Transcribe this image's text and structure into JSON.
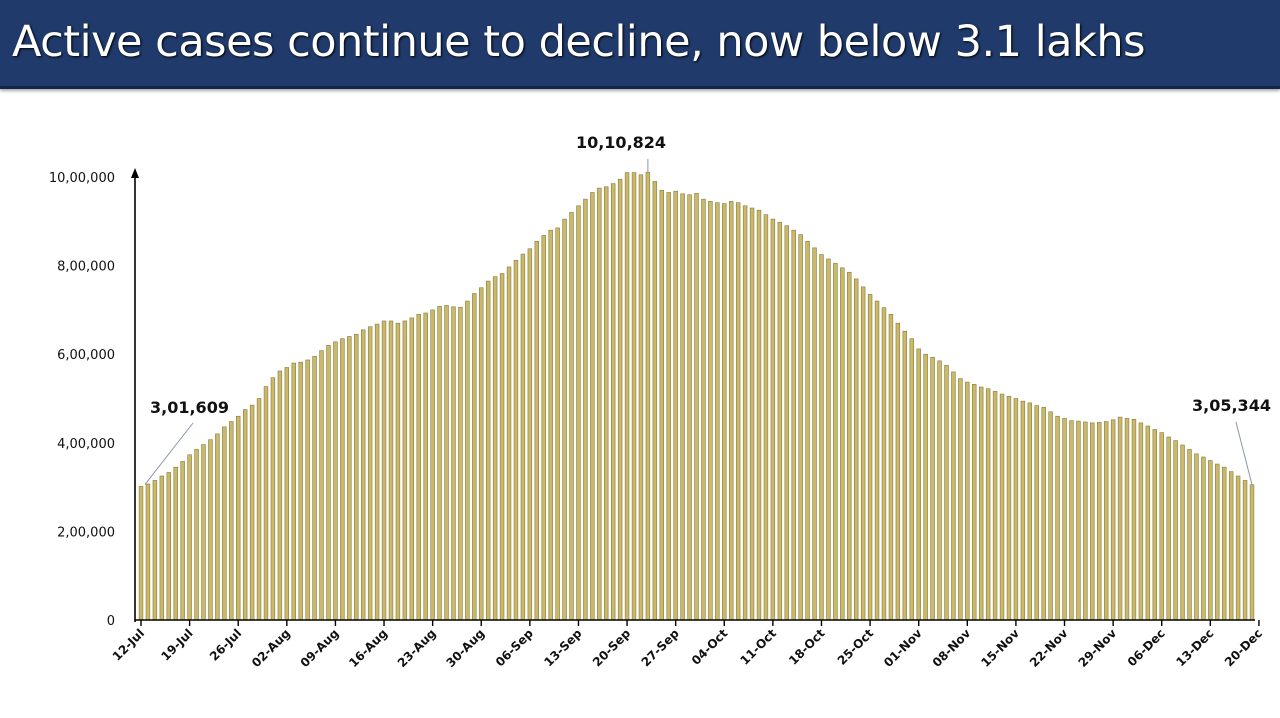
{
  "header": {
    "title": "Active cases continue to decline, now below 3.1 lakhs",
    "background_color": "#1f3a6b",
    "text_color": "#ffffff"
  },
  "chart_data": {
    "type": "bar",
    "title": "Active cases continue to decline, now below 3.1 lakhs",
    "xlabel": "",
    "ylabel": "",
    "ylim": [
      0,
      1000000
    ],
    "grid": false,
    "legend": null,
    "bar_color": "#c9b96a",
    "bar_edge_color": "#8a7a3a",
    "y_ticks": [
      {
        "value": 0,
        "label": "0"
      },
      {
        "value": 200000,
        "label": "2,00,000"
      },
      {
        "value": 400000,
        "label": "4,00,000"
      },
      {
        "value": 600000,
        "label": "6,00,000"
      },
      {
        "value": 800000,
        "label": "8,00,000"
      },
      {
        "value": 1000000,
        "label": "10,00,000"
      }
    ],
    "x_tick_labels": [
      "12-Jul",
      "19-Jul",
      "26-Jul",
      "02-Aug",
      "09-Aug",
      "16-Aug",
      "23-Aug",
      "30-Aug",
      "06-Sep",
      "13-Sep",
      "20-Sep",
      "27-Sep",
      "04-Oct",
      "11-Oct",
      "18-Oct",
      "25-Oct",
      "01-Nov",
      "08-Nov",
      "15-Nov",
      "22-Nov",
      "29-Nov",
      "06-Dec",
      "13-Dec",
      "20-Dec"
    ],
    "annotations": [
      {
        "label": "3,01,609",
        "date": "12-Jul",
        "value": 301609
      },
      {
        "label": "10,10,824",
        "date": "17-Sep",
        "value": 1010824
      },
      {
        "label": "3,05,344",
        "date": "20-Dec",
        "value": 305344
      }
    ],
    "start_date": "12-Jul",
    "end_date": "20-Dec",
    "values": [
      301609,
      307000,
      315000,
      325000,
      333000,
      345000,
      358000,
      373000,
      385000,
      396000,
      407000,
      420000,
      436000,
      448000,
      460000,
      475000,
      485000,
      500000,
      527000,
      547000,
      562000,
      570000,
      580000,
      582000,
      587000,
      595000,
      608000,
      620000,
      628000,
      635000,
      640000,
      645000,
      655000,
      662000,
      668000,
      675000,
      675000,
      670000,
      675000,
      682000,
      690000,
      693000,
      700000,
      708000,
      710000,
      707000,
      706000,
      720000,
      737000,
      750000,
      765000,
      775000,
      782000,
      797000,
      812000,
      826000,
      838000,
      855000,
      868000,
      880000,
      885000,
      905000,
      920000,
      935000,
      950000,
      965000,
      975000,
      978000,
      985000,
      995000,
      1010000,
      1010000,
      1005000,
      1010824,
      990000,
      970000,
      965000,
      968000,
      962000,
      960000,
      963000,
      950000,
      945000,
      942000,
      940000,
      945000,
      942000,
      935000,
      930000,
      925000,
      915000,
      905000,
      898000,
      890000,
      880000,
      870000,
      855000,
      840000,
      825000,
      815000,
      805000,
      795000,
      785000,
      770000,
      752000,
      735000,
      720000,
      705000,
      690000,
      670000,
      652000,
      635000,
      612000,
      600000,
      593000,
      585000,
      575000,
      560000,
      545000,
      537000,
      532000,
      526000,
      522000,
      516000,
      510000,
      505000,
      500000,
      494000,
      490000,
      484000,
      480000,
      470000,
      460000,
      455000,
      450000,
      449000,
      447000,
      445000,
      446000,
      448000,
      452000,
      458000,
      455000,
      453000,
      445000,
      438000,
      430000,
      423000,
      413000,
      405000,
      395000,
      385000,
      375000,
      368000,
      360000,
      352000,
      345000,
      335000,
      325000,
      315000,
      305344
    ]
  }
}
